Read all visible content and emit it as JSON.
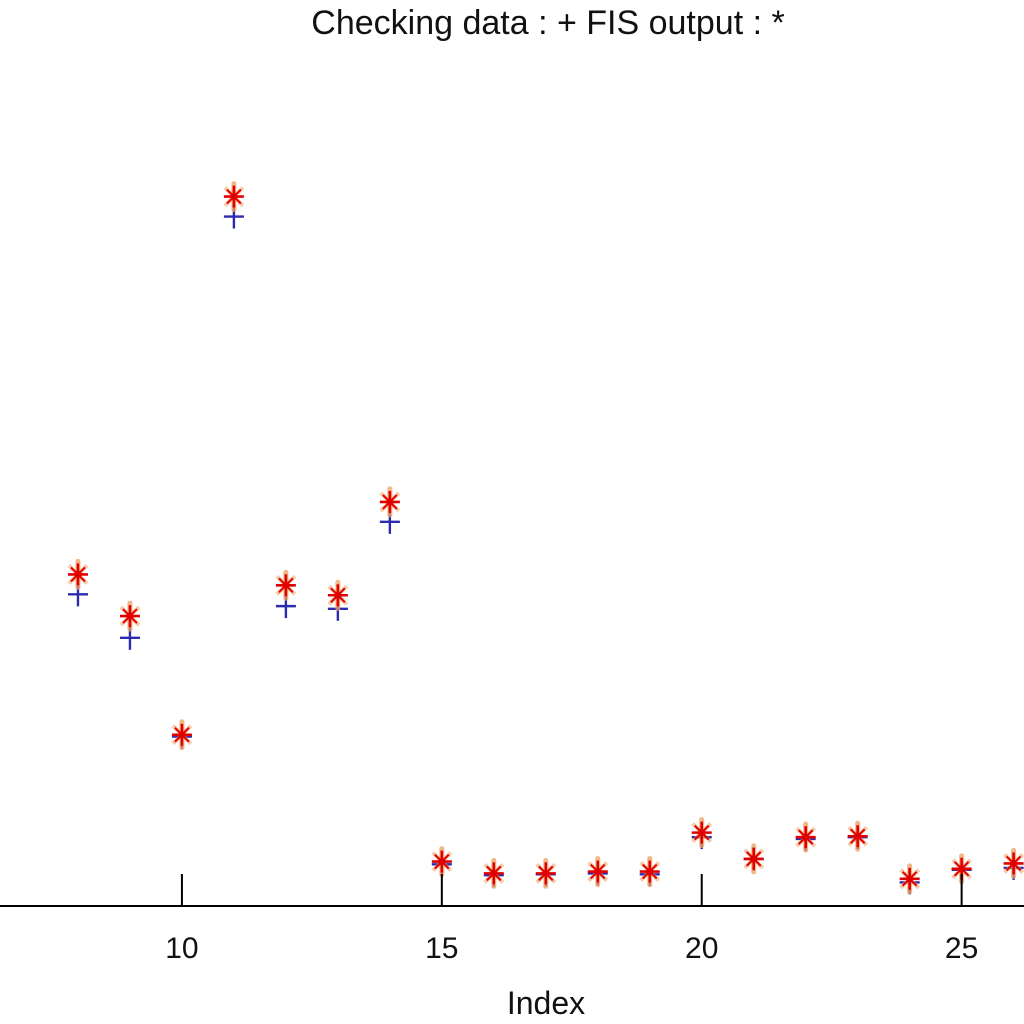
{
  "chart_data": {
    "type": "scatter",
    "title": "Checking data : +   FIS output : *",
    "xlabel": "Index",
    "ylabel": "",
    "xlim": [
      6.5,
      26.2
    ],
    "ylim": [
      0,
      1
    ],
    "xticks": [
      10,
      15,
      20,
      25
    ],
    "x": [
      8,
      9,
      10,
      11,
      12,
      13,
      14,
      15,
      16,
      17,
      18,
      19,
      20,
      21,
      22,
      23,
      24,
      25,
      26
    ],
    "series": [
      {
        "name": "Checking data",
        "marker": "+",
        "color": "#2b2bb0",
        "values": [
          0.344,
          0.296,
          0.187,
          0.761,
          0.331,
          0.328,
          0.424,
          0.046,
          0.034,
          0.035,
          0.036,
          0.035,
          0.076,
          0.052,
          0.074,
          0.076,
          0.026,
          0.04,
          0.042
        ]
      },
      {
        "name": "FIS output",
        "marker": "*",
        "color": "#e00000",
        "values": [
          0.366,
          0.32,
          0.189,
          0.783,
          0.354,
          0.343,
          0.446,
          0.049,
          0.036,
          0.036,
          0.038,
          0.038,
          0.081,
          0.052,
          0.076,
          0.077,
          0.03,
          0.041,
          0.047
        ]
      }
    ],
    "grid": false,
    "legend": "none"
  }
}
